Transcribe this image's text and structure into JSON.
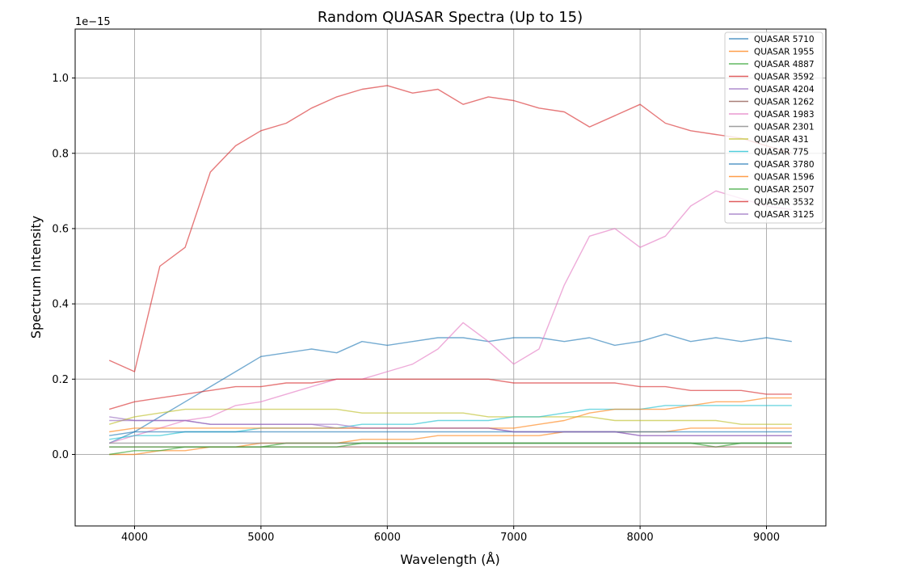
{
  "chart_data": {
    "type": "line",
    "title": "Random QUASAR Spectra (Up to 15)",
    "xlabel": "Wavelength (Å)",
    "ylabel": "Spectrum Intensity",
    "y_offset_text": "1e−15",
    "xlim": [
      3530,
      9470
    ],
    "ylim": [
      -0.19,
      1.13
    ],
    "xticks": [
      4000,
      5000,
      6000,
      7000,
      8000,
      9000
    ],
    "yticks": [
      0.0,
      0.2,
      0.4,
      0.6,
      0.8,
      1.0
    ],
    "xtick_labels": [
      "4000",
      "5000",
      "6000",
      "7000",
      "8000",
      "9000"
    ],
    "ytick_labels": [
      "0.0",
      "0.2",
      "0.4",
      "0.6",
      "0.8",
      "1.0"
    ],
    "grid": true,
    "legend_position": "top-right",
    "x": [
      3800,
      4000,
      4200,
      4400,
      4600,
      4800,
      5000,
      5200,
      5400,
      5600,
      5800,
      6000,
      6200,
      6400,
      6600,
      6800,
      7000,
      7200,
      7400,
      7600,
      7800,
      8000,
      8200,
      8400,
      8600,
      8800,
      9000,
      9200
    ],
    "series": [
      {
        "name": "QUASAR 5710",
        "color": "#1f77b4",
        "values": [
          0.03,
          0.06,
          0.1,
          0.14,
          0.18,
          0.22,
          0.26,
          0.27,
          0.28,
          0.27,
          0.3,
          0.29,
          0.3,
          0.31,
          0.31,
          0.3,
          0.31,
          0.31,
          0.3,
          0.31,
          0.29,
          0.3,
          0.32,
          0.3,
          0.31,
          0.3,
          0.31,
          0.3
        ]
      },
      {
        "name": "QUASAR 1955",
        "color": "#ff7f0e",
        "values": [
          0.0,
          0.0,
          0.01,
          0.01,
          0.02,
          0.02,
          0.03,
          0.03,
          0.03,
          0.03,
          0.04,
          0.04,
          0.04,
          0.05,
          0.05,
          0.05,
          0.05,
          0.05,
          0.06,
          0.06,
          0.06,
          0.06,
          0.06,
          0.07,
          0.07,
          0.07,
          0.07,
          0.07
        ]
      },
      {
        "name": "QUASAR 4887",
        "color": "#2ca02c",
        "values": [
          0.0,
          0.01,
          0.01,
          0.02,
          0.02,
          0.02,
          0.02,
          0.03,
          0.03,
          0.03,
          0.03,
          0.03,
          0.03,
          0.03,
          0.03,
          0.03,
          0.03,
          0.03,
          0.03,
          0.03,
          0.03,
          0.03,
          0.03,
          0.03,
          0.02,
          0.03,
          0.03,
          0.03
        ]
      },
      {
        "name": "QUASAR 3592",
        "color": "#d62728",
        "values": [
          0.25,
          0.22,
          0.5,
          0.55,
          0.75,
          0.82,
          0.86,
          0.88,
          0.92,
          0.95,
          0.97,
          0.98,
          0.96,
          0.97,
          0.93,
          0.95,
          0.94,
          0.92,
          0.91,
          0.87,
          0.9,
          0.93,
          0.88,
          0.86,
          0.85,
          0.84,
          0.82,
          0.8
        ]
      },
      {
        "name": "QUASAR 4204",
        "color": "#9467bd",
        "values": [
          0.1,
          0.09,
          0.09,
          0.09,
          0.08,
          0.08,
          0.08,
          0.08,
          0.08,
          0.07,
          0.07,
          0.07,
          0.07,
          0.07,
          0.07,
          0.07,
          0.06,
          0.06,
          0.06,
          0.06,
          0.06,
          0.05,
          0.05,
          0.05,
          0.05,
          0.05,
          0.05,
          0.05
        ]
      },
      {
        "name": "QUASAR 1262",
        "color": "#8c564b",
        "values": [
          0.02,
          0.02,
          0.02,
          0.02,
          0.02,
          0.02,
          0.02,
          0.02,
          0.02,
          0.02,
          0.02,
          0.02,
          0.02,
          0.02,
          0.02,
          0.02,
          0.02,
          0.02,
          0.02,
          0.02,
          0.02,
          0.02,
          0.02,
          0.02,
          0.02,
          0.02,
          0.02,
          0.02
        ]
      },
      {
        "name": "QUASAR 1983",
        "color": "#e377c2",
        "values": [
          0.03,
          0.05,
          0.07,
          0.09,
          0.1,
          0.13,
          0.14,
          0.16,
          0.18,
          0.2,
          0.2,
          0.22,
          0.24,
          0.28,
          0.35,
          0.3,
          0.24,
          0.28,
          0.45,
          0.58,
          0.6,
          0.55,
          0.58,
          0.66,
          0.7,
          0.68,
          0.66,
          0.65
        ]
      },
      {
        "name": "QUASAR 2301",
        "color": "#7f7f7f",
        "values": [
          0.03,
          0.03,
          0.03,
          0.03,
          0.03,
          0.03,
          0.03,
          0.03,
          0.03,
          0.03,
          0.03,
          0.03,
          0.03,
          0.03,
          0.03,
          0.03,
          0.03,
          0.03,
          0.03,
          0.03,
          0.03,
          0.03,
          0.03,
          0.03,
          0.03,
          0.03,
          0.03,
          0.03
        ]
      },
      {
        "name": "QUASAR 431",
        "color": "#bcbd22",
        "values": [
          0.08,
          0.1,
          0.11,
          0.12,
          0.12,
          0.12,
          0.12,
          0.12,
          0.12,
          0.12,
          0.11,
          0.11,
          0.11,
          0.11,
          0.11,
          0.1,
          0.1,
          0.1,
          0.1,
          0.1,
          0.09,
          0.09,
          0.09,
          0.09,
          0.09,
          0.08,
          0.08,
          0.08
        ]
      },
      {
        "name": "QUASAR 775",
        "color": "#17becf",
        "values": [
          0.04,
          0.05,
          0.05,
          0.06,
          0.06,
          0.06,
          0.07,
          0.07,
          0.07,
          0.07,
          0.08,
          0.08,
          0.08,
          0.09,
          0.09,
          0.09,
          0.1,
          0.1,
          0.11,
          0.12,
          0.12,
          0.12,
          0.13,
          0.13,
          0.13,
          0.13,
          0.13,
          0.13
        ]
      },
      {
        "name": "QUASAR 3780",
        "color": "#1f77b4",
        "values": [
          0.05,
          0.06,
          0.06,
          0.06,
          0.06,
          0.06,
          0.06,
          0.06,
          0.06,
          0.06,
          0.06,
          0.06,
          0.06,
          0.06,
          0.06,
          0.06,
          0.06,
          0.06,
          0.06,
          0.06,
          0.06,
          0.06,
          0.06,
          0.06,
          0.06,
          0.06,
          0.06,
          0.06
        ]
      },
      {
        "name": "QUASAR 1596",
        "color": "#ff7f0e",
        "values": [
          0.06,
          0.07,
          0.07,
          0.07,
          0.07,
          0.07,
          0.07,
          0.07,
          0.07,
          0.07,
          0.07,
          0.07,
          0.07,
          0.07,
          0.07,
          0.07,
          0.07,
          0.08,
          0.09,
          0.11,
          0.12,
          0.12,
          0.12,
          0.13,
          0.14,
          0.14,
          0.15,
          0.15
        ]
      },
      {
        "name": "QUASAR 2507",
        "color": "#2ca02c",
        "values": [
          0.02,
          0.02,
          0.02,
          0.02,
          0.02,
          0.02,
          0.02,
          0.02,
          0.02,
          0.02,
          0.03,
          0.03,
          0.03,
          0.03,
          0.03,
          0.03,
          0.03,
          0.03,
          0.03,
          0.03,
          0.03,
          0.03,
          0.03,
          0.03,
          0.03,
          0.03,
          0.03,
          0.03
        ]
      },
      {
        "name": "QUASAR 3532",
        "color": "#d62728",
        "values": [
          0.12,
          0.14,
          0.15,
          0.16,
          0.17,
          0.18,
          0.18,
          0.19,
          0.19,
          0.2,
          0.2,
          0.2,
          0.2,
          0.2,
          0.2,
          0.2,
          0.19,
          0.19,
          0.19,
          0.19,
          0.19,
          0.18,
          0.18,
          0.17,
          0.17,
          0.17,
          0.16,
          0.16
        ]
      },
      {
        "name": "QUASAR 3125",
        "color": "#9467bd",
        "values": [
          0.09,
          0.09,
          0.09,
          0.09,
          0.08,
          0.08,
          0.08,
          0.08,
          0.08,
          0.08,
          0.07,
          0.07,
          0.07,
          0.07,
          0.07,
          0.07,
          0.06,
          0.06,
          0.06,
          0.06,
          0.06,
          0.05,
          0.05,
          0.05,
          0.05,
          0.05,
          0.05,
          0.05
        ]
      }
    ]
  }
}
